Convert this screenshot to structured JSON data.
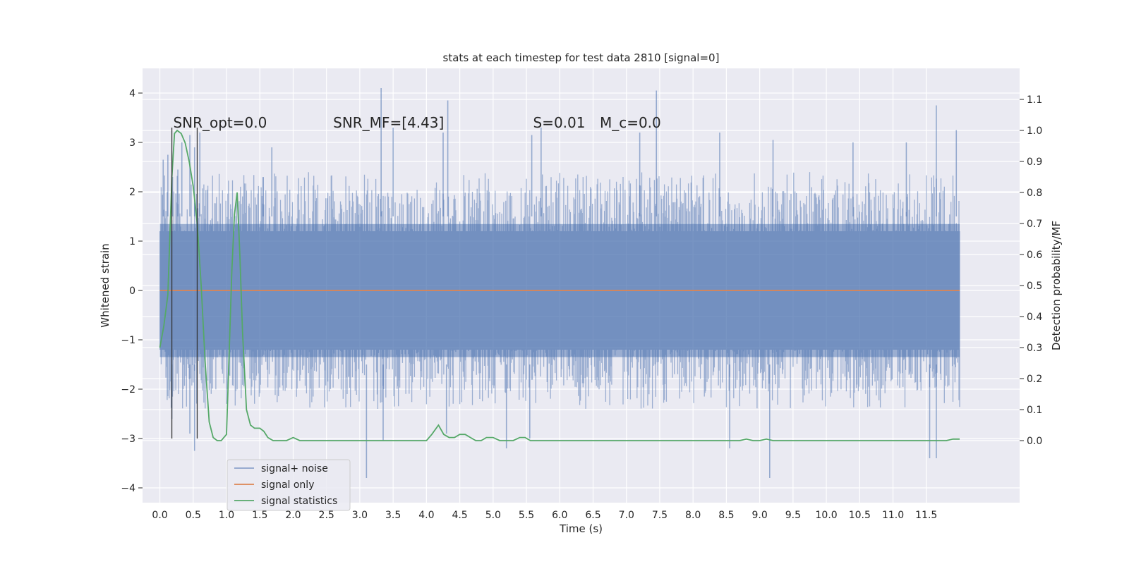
{
  "chart_data": {
    "type": "line",
    "title": "stats at each timestep for test data 2810 [signal=0]",
    "xlabel": "Time (s)",
    "ylabel": "Whitened strain",
    "y2label": "Detection probability/MF",
    "xlim": [
      -0.26,
      12.9
    ],
    "ylim": [
      -4.3,
      4.5
    ],
    "y2lim": [
      -0.2,
      1.2
    ],
    "xticks": [
      "0.0",
      "0.5",
      "1.0",
      "1.5",
      "2.0",
      "2.5",
      "3.0",
      "3.5",
      "4.0",
      "4.5",
      "5.0",
      "5.5",
      "6.0",
      "6.5",
      "7.0",
      "7.5",
      "8.0",
      "8.5",
      "9.0",
      "9.5",
      "10.0",
      "10.5",
      "11.0",
      "11.5"
    ],
    "yticks": [
      "-4",
      "-3",
      "-2",
      "-1",
      "0",
      "1",
      "2",
      "3",
      "4"
    ],
    "y2ticks": [
      "0.0",
      "0.1",
      "0.2",
      "0.3",
      "0.4",
      "0.5",
      "0.6",
      "0.7",
      "0.8",
      "0.9",
      "1.0",
      "1.1"
    ],
    "grid": true,
    "legend_position": "lower-left",
    "background": "#eaeaf2",
    "annotations": [
      {
        "text": "SNR_opt=0.0",
        "x": 0.2,
        "y": 3.3
      },
      {
        "text": "SNR_MF=[4.43]",
        "x": 2.6,
        "y": 3.3
      },
      {
        "text": "S=0.01",
        "x": 5.6,
        "y": 3.3
      },
      {
        "text": "M_c=0.0",
        "x": 6.6,
        "y": 3.3
      }
    ],
    "vlines": [
      0.18,
      0.56
    ],
    "series": [
      {
        "name": "signal+ noise",
        "axis": "left",
        "color": "#4c72b0",
        "style": "noise",
        "x_range": [
          0.0,
          12.0
        ],
        "band": [
          -1.8,
          1.8
        ],
        "peaks": [
          [
            0.05,
            2.65
          ],
          [
            0.12,
            2.75
          ],
          [
            0.19,
            2.3
          ],
          [
            0.27,
            2.45
          ],
          [
            0.33,
            3.0
          ],
          [
            0.45,
            3.15
          ],
          [
            0.52,
            2.9
          ],
          [
            0.6,
            3.2
          ],
          [
            1.55,
            2.3
          ],
          [
            1.68,
            2.9
          ],
          [
            3.32,
            4.1
          ],
          [
            3.5,
            3.3
          ],
          [
            4.25,
            3.2
          ],
          [
            4.32,
            3.85
          ],
          [
            5.58,
            3.15
          ],
          [
            5.72,
            3.3
          ],
          [
            7.2,
            3.2
          ],
          [
            7.45,
            4.05
          ],
          [
            8.4,
            3.2
          ],
          [
            9.2,
            3.05
          ],
          [
            10.4,
            3.0
          ],
          [
            11.2,
            3.0
          ],
          [
            11.65,
            3.75
          ],
          [
            11.95,
            3.25
          ]
        ],
        "troughs": [
          [
            0.18,
            -2.6
          ],
          [
            0.45,
            -2.9
          ],
          [
            0.52,
            -3.25
          ],
          [
            3.1,
            -3.8
          ],
          [
            3.35,
            -3.05
          ],
          [
            4.3,
            -2.9
          ],
          [
            5.2,
            -3.2
          ],
          [
            5.55,
            -3.0
          ],
          [
            8.55,
            -3.2
          ],
          [
            9.15,
            -3.8
          ],
          [
            11.55,
            -3.4
          ],
          [
            11.65,
            -3.4
          ]
        ]
      },
      {
        "name": "signal only",
        "axis": "left",
        "color": "#dd8452",
        "x": [
          0.0,
          12.0
        ],
        "values": [
          0.0,
          0.0
        ]
      },
      {
        "name": "signal statistics",
        "axis": "right",
        "color": "#55a868",
        "x": [
          0.0,
          0.06,
          0.12,
          0.18,
          0.22,
          0.26,
          0.32,
          0.38,
          0.44,
          0.5,
          0.56,
          0.62,
          0.68,
          0.74,
          0.8,
          0.86,
          0.92,
          1.0,
          1.08,
          1.12,
          1.16,
          1.2,
          1.24,
          1.3,
          1.36,
          1.42,
          1.5,
          1.56,
          1.62,
          1.7,
          1.78,
          1.9,
          2.0,
          2.1,
          2.2,
          2.4,
          2.6,
          3.0,
          3.5,
          3.9,
          4.0,
          4.08,
          4.18,
          4.26,
          4.34,
          4.42,
          4.5,
          4.58,
          4.66,
          4.74,
          4.82,
          4.9,
          5.0,
          5.1,
          5.2,
          5.3,
          5.4,
          5.48,
          5.56,
          5.64,
          5.74,
          6.0,
          7.0,
          7.8,
          8.0,
          8.5,
          8.7,
          8.8,
          8.9,
          9.0,
          9.1,
          9.2,
          10.0,
          11.0,
          11.5,
          11.8,
          11.9,
          12.0
        ],
        "values": [
          0.3,
          0.37,
          0.47,
          0.85,
          0.99,
          1.0,
          0.99,
          0.96,
          0.9,
          0.82,
          0.7,
          0.5,
          0.25,
          0.06,
          0.01,
          0.0,
          0.0,
          0.02,
          0.55,
          0.73,
          0.8,
          0.6,
          0.35,
          0.1,
          0.05,
          0.04,
          0.04,
          0.03,
          0.01,
          0.0,
          0.0,
          0.0,
          0.01,
          0.0,
          0.0,
          0.0,
          0.0,
          0.0,
          0.0,
          0.0,
          0.0,
          0.02,
          0.05,
          0.02,
          0.01,
          0.01,
          0.02,
          0.02,
          0.01,
          0.0,
          0.0,
          0.01,
          0.01,
          0.0,
          0.0,
          0.0,
          0.01,
          0.01,
          0.0,
          0.0,
          0.0,
          0.0,
          0.0,
          0.0,
          0.0,
          0.0,
          0.0,
          0.005,
          0.0,
          0.0,
          0.005,
          0.0,
          0.0,
          0.0,
          0.0,
          0.0,
          0.005,
          0.005
        ]
      }
    ]
  }
}
